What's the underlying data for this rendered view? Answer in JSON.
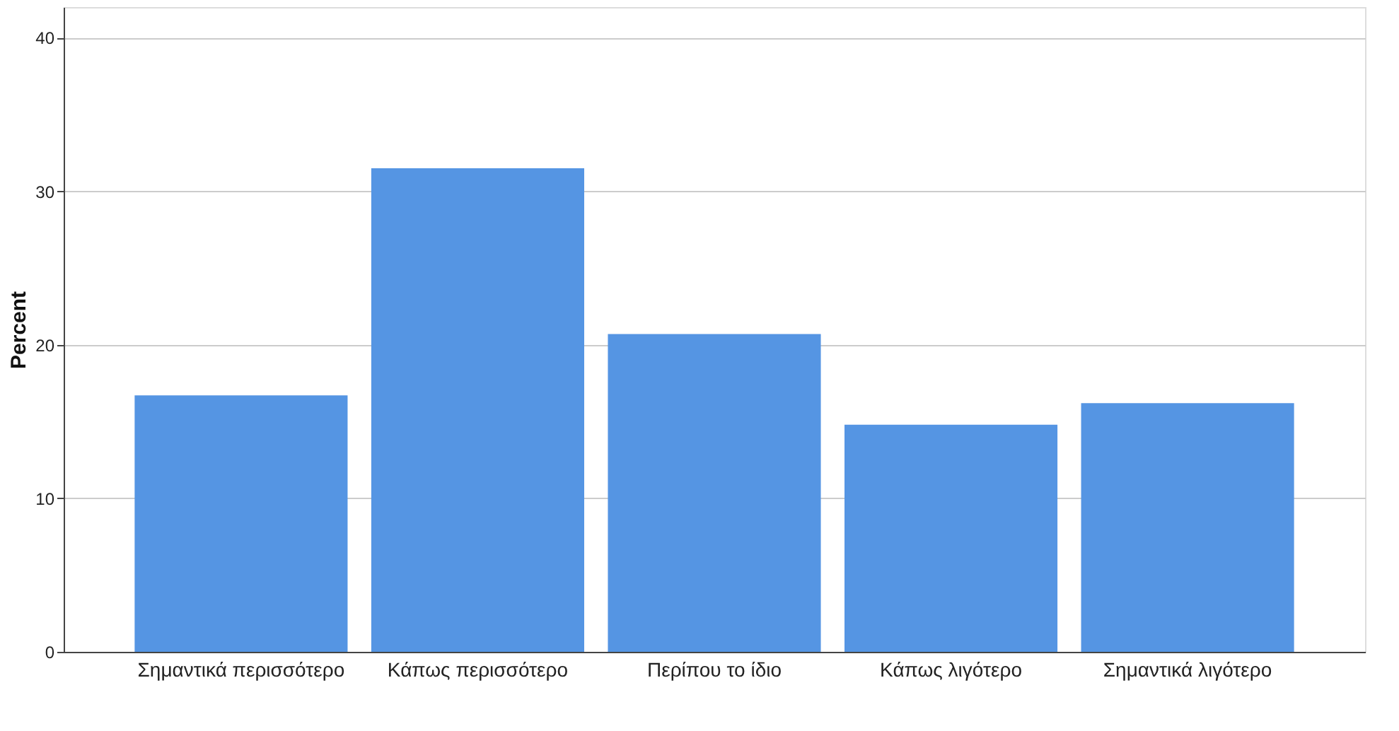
{
  "chart_data": {
    "type": "bar",
    "categories": [
      "Σημαντικά περισσότερο",
      "Κάπως περισσότερο",
      "Περίπου το ίδιο",
      "Κάπως λιγότερο",
      "Σημαντικά λιγότερο"
    ],
    "values": [
      16.7,
      31.5,
      20.7,
      14.8,
      16.2
    ],
    "color": "#5595e3",
    "ylabel": "Percent",
    "ylim": [
      0,
      42
    ],
    "yticks": [
      0,
      10,
      20,
      30,
      40
    ],
    "grid": "y"
  }
}
